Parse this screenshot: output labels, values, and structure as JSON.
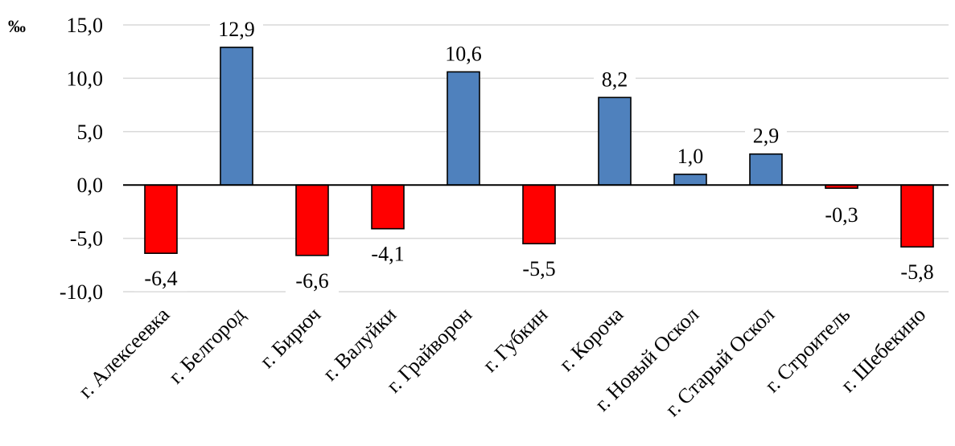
{
  "chart_data": {
    "type": "bar",
    "unit_label": "‰",
    "ylim": [
      -10,
      15
    ],
    "yticks": [
      "15,0",
      "10,0",
      "5,0",
      "0,0",
      "-5,0",
      "-10,0"
    ],
    "ytick_values": [
      15,
      10,
      5,
      0,
      -5,
      -10
    ],
    "grid": true,
    "categories": [
      "г. Алексеевка",
      "г. Белгород",
      "г. Бирюч",
      "г. Валуйки",
      "г. Грайворон",
      "г. Губкин",
      "г. Короча",
      "г. Новый Оскол",
      "г. Старый Оскол",
      "г. Строитель",
      "г. Шебекино"
    ],
    "values": [
      -6.4,
      12.9,
      -6.6,
      -4.1,
      10.6,
      -5.5,
      8.2,
      1.0,
      2.9,
      -0.3,
      -5.8
    ],
    "value_labels": [
      "-6,4",
      "12,9",
      "-6,6",
      "-4,1",
      "10,6",
      "-5,5",
      "8,2",
      "1,0",
      "2,9",
      "-0,3",
      "-5,8"
    ],
    "colors": {
      "positive": "#4f81bd",
      "negative": "#ff0000"
    }
  }
}
